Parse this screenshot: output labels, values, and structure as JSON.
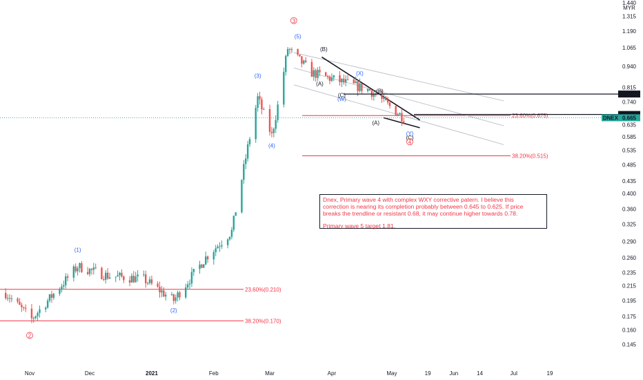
{
  "chart_data": {
    "type": "candlestick",
    "currency_label": "MYR",
    "symbol_tag": "DNEX",
    "y_scale": "log",
    "ylim": [
      0.135,
      1.44
    ],
    "y_ticks": [
      "1.440",
      "1.315",
      "1.190",
      "1.065",
      "0.940",
      "0.815",
      "0.740",
      "0.680",
      "0.635",
      "0.585",
      "0.535",
      "0.485",
      "0.435",
      "0.400",
      "0.360",
      "0.325",
      "0.290",
      "0.260",
      "0.235",
      "0.215",
      "0.195",
      "0.175",
      "0.160",
      "0.145"
    ],
    "x_ticks": [
      {
        "label": "Nov",
        "date": "2020-11-01"
      },
      {
        "label": "Dec",
        "date": "2020-12-01"
      },
      {
        "label": "2021",
        "date": "2021-01-01"
      },
      {
        "label": "Feb",
        "date": "2021-02-01"
      },
      {
        "label": "Mar",
        "date": "2021-03-01"
      },
      {
        "label": "Apr",
        "date": "2021-04-01"
      },
      {
        "label": "May",
        "date": "2021-05-01"
      },
      {
        "label": "19",
        "date": "2021-05-19"
      },
      {
        "label": "Jun",
        "date": "2021-06-01"
      },
      {
        "label": "14",
        "date": "2021-06-14"
      },
      {
        "label": "Jul",
        "date": "2021-07-01"
      },
      {
        "label": "19",
        "date": "2021-07-19"
      }
    ],
    "price_key_points": [
      {
        "date": "2020-10-20",
        "close": 0.205
      },
      {
        "date": "2020-11-02",
        "close": 0.172
      },
      {
        "date": "2020-11-25",
        "close": 0.245
      },
      {
        "date": "2020-12-10",
        "close": 0.23
      },
      {
        "date": "2020-12-28",
        "close": 0.225
      },
      {
        "date": "2021-01-12",
        "close": 0.195
      },
      {
        "date": "2021-01-28",
        "close": 0.26
      },
      {
        "date": "2021-02-10",
        "close": 0.31
      },
      {
        "date": "2021-02-18",
        "close": 0.545
      },
      {
        "date": "2021-02-23",
        "close": 0.76
      },
      {
        "date": "2021-03-02",
        "close": 0.59
      },
      {
        "date": "2021-03-05",
        "close": 0.72
      },
      {
        "date": "2021-03-10",
        "close": 1.06
      },
      {
        "date": "2021-03-22",
        "close": 0.9
      },
      {
        "date": "2021-04-05",
        "close": 0.85
      },
      {
        "date": "2021-04-20",
        "close": 0.8
      },
      {
        "date": "2021-05-07",
        "close": 0.665
      }
    ],
    "price_lines": [
      {
        "value": 0.78,
        "label": "0.780",
        "color": "#131722"
      },
      {
        "value": 0.68,
        "label": "0.680",
        "color": "#131722"
      },
      {
        "value": 0.665,
        "label": "0.665",
        "color": "#26a69a"
      }
    ],
    "fib_levels": [
      {
        "label": "23.60%(0.675)",
        "value": 0.675
      },
      {
        "label": "38.20%(0.515)",
        "value": 0.515
      },
      {
        "label": "23.60%(0.210)",
        "value": 0.21
      },
      {
        "label": "38.20%(0.170)",
        "value": 0.17
      }
    ],
    "wave_labels": [
      {
        "text": "(1)",
        "date": "2020-11-25",
        "price": 0.27,
        "kind": "minor"
      },
      {
        "text": "(2)",
        "date": "2021-01-12",
        "price": 0.18,
        "kind": "minor"
      },
      {
        "text": "(3)",
        "date": "2021-02-23",
        "price": 0.87,
        "kind": "minor"
      },
      {
        "text": "(4)",
        "date": "2021-03-02",
        "price": 0.545,
        "kind": "minor"
      },
      {
        "text": "(5)",
        "date": "2021-03-15",
        "price": 1.135,
        "kind": "minor"
      },
      {
        "text": "(A)",
        "date": "2021-03-26",
        "price": 0.825,
        "kind": "sub"
      },
      {
        "text": "(B)",
        "date": "2021-03-28",
        "price": 1.04,
        "kind": "sub"
      },
      {
        "text": "(X)",
        "date": "2021-04-15",
        "price": 0.885,
        "kind": "minor"
      },
      {
        "text": "(C)",
        "date": "2021-04-06",
        "price": 0.765,
        "kind": "sub"
      },
      {
        "text": "(W)",
        "date": "2021-04-06",
        "price": 0.745,
        "kind": "minor"
      },
      {
        "text": "(B)",
        "date": "2021-04-25",
        "price": 0.785,
        "kind": "sub"
      },
      {
        "text": "(A)",
        "date": "2021-04-23",
        "price": 0.635,
        "kind": "sub"
      },
      {
        "text": "(Y)",
        "date": "2021-05-10",
        "price": 0.59,
        "kind": "minor"
      },
      {
        "text": "(C)",
        "date": "2021-05-10",
        "price": 0.575,
        "kind": "sub"
      }
    ],
    "primary_labels": [
      {
        "text": "2",
        "date": "2020-11-01",
        "price": 0.152
      },
      {
        "text": "3",
        "date": "2021-03-13",
        "price": 1.26
      },
      {
        "text": "4",
        "date": "2021-05-10",
        "price": 0.558
      }
    ],
    "annotation": {
      "lines": [
        "Dnex, Primary wave 4 with complex WXY corrective patern. I believe this",
        "correction is nearing its completion probably between 0.645 to 0.625. If price",
        "breaks the trendline or resistant 0.68, it may continue higher towards 0.78."
      ],
      "target": "Primary wave 5 target  1.81."
    }
  },
  "colors": {
    "up": "#26a69a",
    "down": "#ef5350",
    "fib": "#f23645",
    "wave": "#2962ff",
    "primary": "#f23645",
    "axis_text": "#131722",
    "channel": "#b2b5be"
  }
}
